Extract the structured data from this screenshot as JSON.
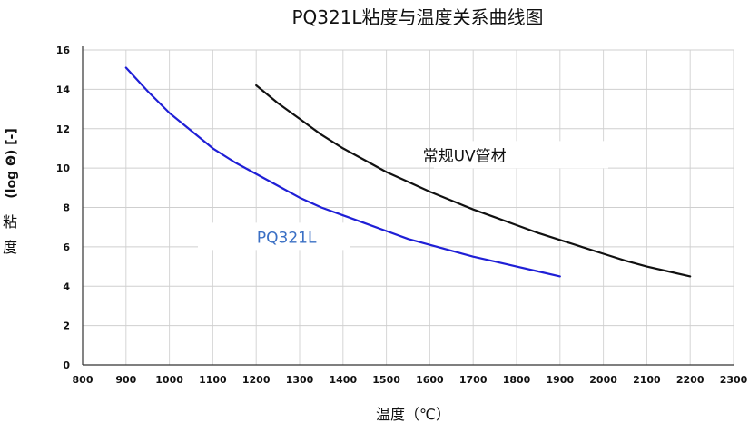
{
  "chart_data": {
    "type": "line",
    "title": "PQ321L粘度与温度关系曲线图",
    "xlabel": "温度（℃）",
    "ylabel_unit": "(log Θ) [-]",
    "ylabel_chars": [
      "粘",
      "度"
    ],
    "xlim": [
      800,
      2300
    ],
    "ylim": [
      0,
      16
    ],
    "x_ticks": [
      "800",
      "900",
      "1000",
      "1100",
      "1200",
      "1300",
      "1400",
      "1500",
      "1600",
      "1700",
      "1800",
      "1900",
      "2000",
      "2100",
      "2200",
      "2300"
    ],
    "y_ticks": [
      "0",
      "2",
      "4",
      "6",
      "8",
      "10",
      "12",
      "14",
      "16"
    ],
    "grid": true,
    "series": [
      {
        "name": "PQ321L",
        "color": "#1f1fd6",
        "label_color": "#3a6fc4",
        "x": [
          900,
          950,
          1000,
          1050,
          1100,
          1150,
          1200,
          1250,
          1300,
          1350,
          1400,
          1450,
          1500,
          1550,
          1600,
          1650,
          1700,
          1750,
          1800,
          1850,
          1900
        ],
        "y": [
          15.1,
          13.9,
          12.8,
          11.9,
          11.0,
          10.3,
          9.7,
          9.1,
          8.5,
          8.0,
          7.6,
          7.2,
          6.8,
          6.4,
          6.1,
          5.8,
          5.5,
          5.25,
          5.0,
          4.75,
          4.5
        ]
      },
      {
        "name": "常规UV管材",
        "color": "#111111",
        "label_color": "#111111",
        "x": [
          1200,
          1250,
          1300,
          1350,
          1400,
          1450,
          1500,
          1550,
          1600,
          1650,
          1700,
          1750,
          1800,
          1850,
          1900,
          1950,
          2000,
          2050,
          2100,
          2150,
          2200
        ],
        "y": [
          14.2,
          13.3,
          12.5,
          11.7,
          11.0,
          10.4,
          9.8,
          9.3,
          8.8,
          8.35,
          7.9,
          7.5,
          7.1,
          6.7,
          6.35,
          6.0,
          5.65,
          5.3,
          5.0,
          4.75,
          4.5
        ]
      }
    ]
  }
}
